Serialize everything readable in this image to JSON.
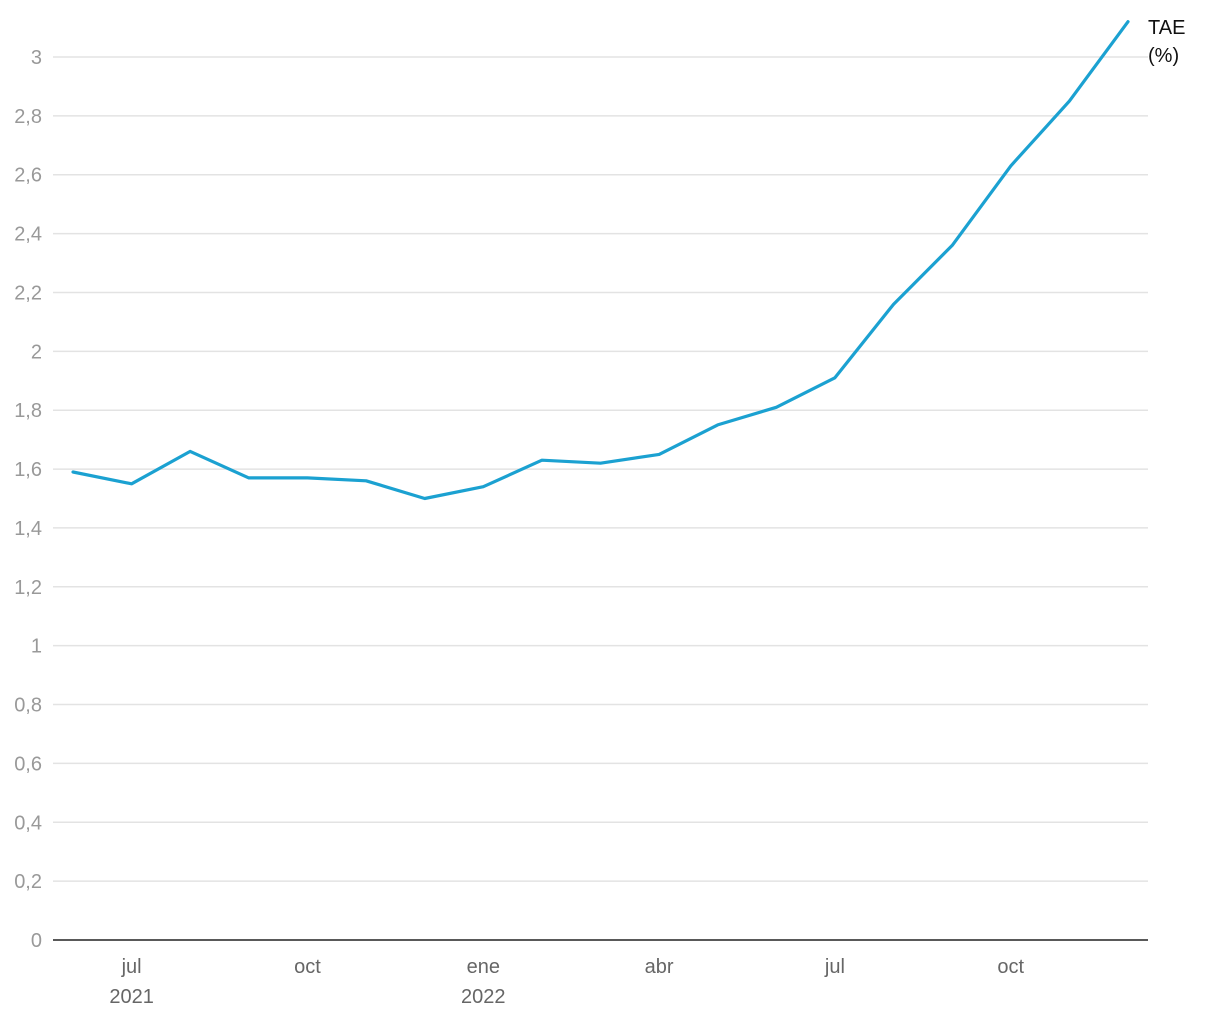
{
  "chart_data": {
    "type": "line",
    "title": "",
    "xlabel": "",
    "ylabel": "",
    "series_label_lines": [
      "TAE",
      "(%)"
    ],
    "x": [
      "2021-06",
      "2021-07",
      "2021-08",
      "2021-09",
      "2021-10",
      "2021-11",
      "2021-12",
      "2022-01",
      "2022-02",
      "2022-03",
      "2022-04",
      "2022-05",
      "2022-06",
      "2022-07",
      "2022-08",
      "2022-09",
      "2022-10",
      "2022-11",
      "2022-12"
    ],
    "series": [
      {
        "name": "TAE (%)",
        "color": "#1ba1d1",
        "values": [
          1.59,
          1.55,
          1.66,
          1.57,
          1.57,
          1.56,
          1.5,
          1.54,
          1.63,
          1.62,
          1.65,
          1.75,
          1.81,
          1.91,
          2.16,
          2.36,
          2.63,
          2.85,
          3.12
        ]
      }
    ],
    "ylim": [
      0,
      3.1
    ],
    "y_ticks": [
      {
        "value": 0,
        "label": "0"
      },
      {
        "value": 0.2,
        "label": "0,2"
      },
      {
        "value": 0.4,
        "label": "0,4"
      },
      {
        "value": 0.6,
        "label": "0,6"
      },
      {
        "value": 0.8,
        "label": "0,8"
      },
      {
        "value": 1,
        "label": "1"
      },
      {
        "value": 1.2,
        "label": "1,2"
      },
      {
        "value": 1.4,
        "label": "1,4"
      },
      {
        "value": 1.6,
        "label": "1,6"
      },
      {
        "value": 1.8,
        "label": "1,8"
      },
      {
        "value": 2,
        "label": "2"
      },
      {
        "value": 2.2,
        "label": "2,2"
      },
      {
        "value": 2.4,
        "label": "2,4"
      },
      {
        "value": 2.6,
        "label": "2,6"
      },
      {
        "value": 2.8,
        "label": "2,8"
      },
      {
        "value": 3,
        "label": "3"
      }
    ],
    "x_ticks": [
      {
        "at": "2021-07",
        "label": "jul",
        "year": "2021"
      },
      {
        "at": "2021-10",
        "label": "oct",
        "year": ""
      },
      {
        "at": "2022-01",
        "label": "ene",
        "year": "2022"
      },
      {
        "at": "2022-04",
        "label": "abr",
        "year": ""
      },
      {
        "at": "2022-07",
        "label": "jul",
        "year": ""
      },
      {
        "at": "2022-10",
        "label": "oct",
        "year": ""
      }
    ],
    "grid": true,
    "legend": "none"
  }
}
